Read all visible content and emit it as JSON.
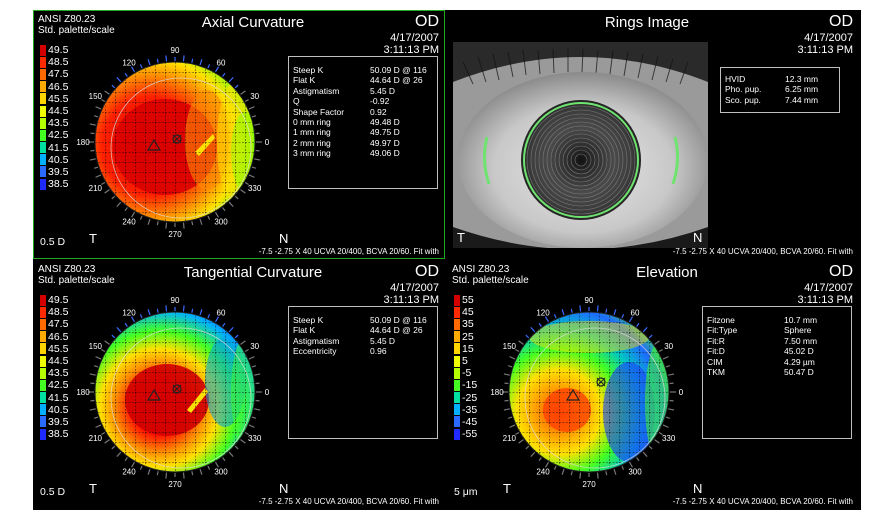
{
  "foot_text": "-7.5 -2.75 X 40 UCVA 20/400, BCVA 20/60. Fit with",
  "eye": "OD",
  "date": "4/17/2007",
  "time": "3:11:13 PM",
  "palette": {
    "std_label": "ANSI Z80.23",
    "std_sub": "Std. palette/scale"
  },
  "orientation": {
    "temporal": "T",
    "nasal": "N"
  },
  "meridians": [
    "90",
    "120",
    "60",
    "150",
    "30",
    "180",
    "0",
    "210",
    "330",
    "240",
    "300",
    "270"
  ],
  "curvature_scale": {
    "labels": [
      "49.5",
      "48.5",
      "47.5",
      "46.5",
      "45.5",
      "44.5",
      "43.5",
      "42.5",
      "41.5",
      "40.5",
      "39.5",
      "38.5"
    ],
    "colors": [
      "#d40000",
      "#ff2a00",
      "#ff6a00",
      "#ffaa00",
      "#ffd400",
      "#f0ff00",
      "#b4ff00",
      "#44ff22",
      "#00e0a0",
      "#00b0ff",
      "#2a6aff",
      "#1e2aff"
    ],
    "unit": "0.5 D"
  },
  "elevation_scale": {
    "labels": [
      "55",
      "45",
      "35",
      "25",
      "15",
      "5",
      "-5",
      "-15",
      "-25",
      "-35",
      "-45",
      "-55"
    ],
    "colors": [
      "#d40000",
      "#ff2a00",
      "#ff6a00",
      "#ffaa00",
      "#ffd400",
      "#f0ff00",
      "#b4ff00",
      "#44ff22",
      "#00e0a0",
      "#00b0ff",
      "#2a6aff",
      "#1e2aff"
    ],
    "unit": "5 μm"
  },
  "axial": {
    "title": "Axial Curvature",
    "rows": [
      {
        "k": "Steep K",
        "v": "50.09 D @ 116"
      },
      {
        "k": "Flat K",
        "v": "44.64 D @ 26"
      },
      {
        "k": "Astigmatism",
        "v": "5.45 D"
      },
      {
        "k": "Q",
        "v": "-0.92"
      },
      {
        "k": "Shape Factor",
        "v": "0.92"
      },
      {
        "k": "0 mm ring",
        "v": "49.48 D"
      },
      {
        "k": "1 mm ring",
        "v": "49.75 D"
      },
      {
        "k": "2 mm ring",
        "v": "49.97 D"
      },
      {
        "k": "3 mm ring",
        "v": "49.06 D"
      }
    ]
  },
  "rings": {
    "title": "Rings Image",
    "rows": [
      {
        "k": "HVID",
        "v": "12.3 mm"
      },
      {
        "k": "Pho. pup.",
        "v": "6.25 mm"
      },
      {
        "k": "Sco. pup.",
        "v": "7.44 mm"
      }
    ]
  },
  "tangential": {
    "title": "Tangential Curvature",
    "rows": [
      {
        "k": "Steep K",
        "v": "50.09 D @ 116"
      },
      {
        "k": "Flat K",
        "v": "44.64 D @ 26"
      },
      {
        "k": "Astigmatism",
        "v": "5.45 D"
      },
      {
        "k": "Eccentricity",
        "v": "0.96"
      }
    ]
  },
  "elevation": {
    "title": "Elevation",
    "rows": [
      {
        "k": "Fitzone",
        "v": "10.7 mm"
      },
      {
        "k": "Fit:Type",
        "v": "Sphere"
      },
      {
        "k": "Fit:R",
        "v": "7.50 mm"
      },
      {
        "k": "Fit:D",
        "v": "45.02 D"
      },
      {
        "k": "CIM",
        "v": "4.29 µm"
      },
      {
        "k": "TKM",
        "v": "50.47 D"
      }
    ]
  }
}
